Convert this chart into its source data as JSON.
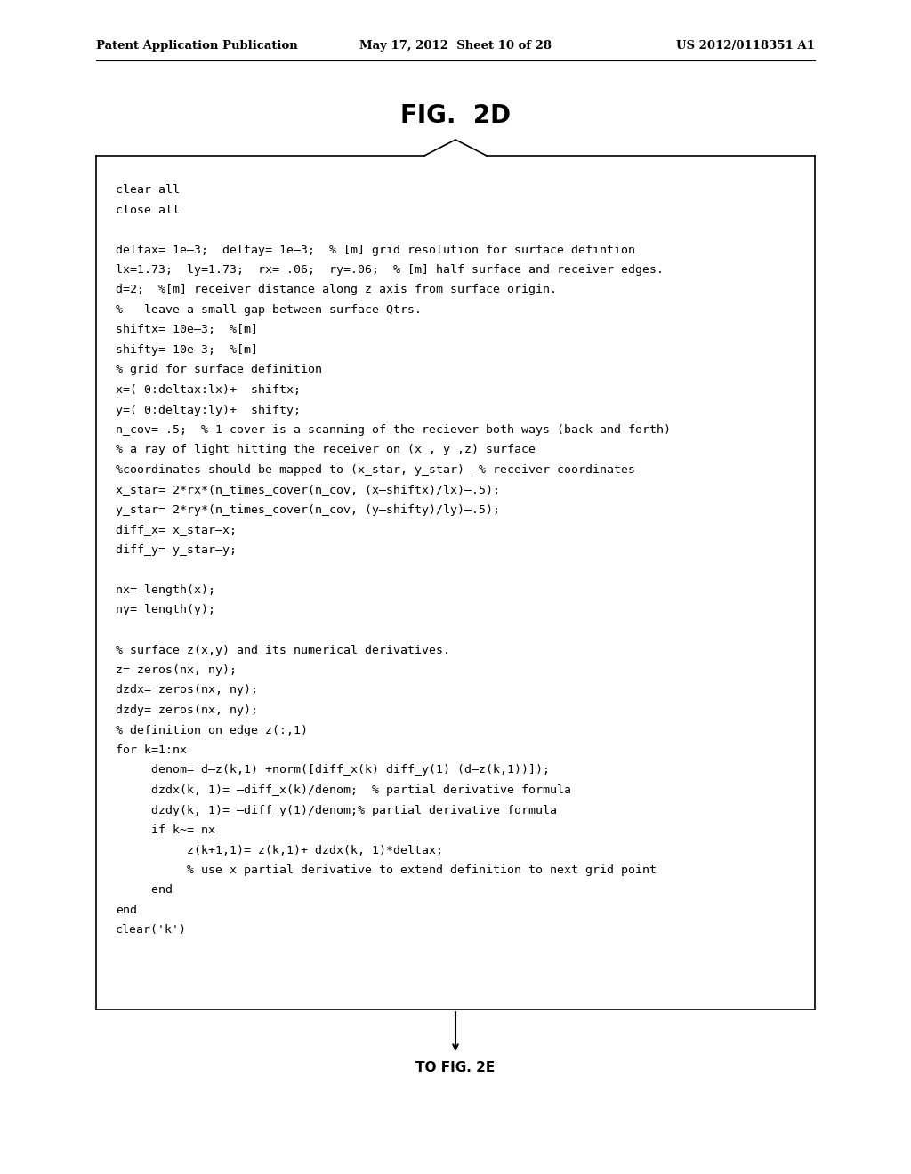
{
  "header_left": "Patent Application Publication",
  "header_mid": "May 17, 2012  Sheet 10 of 28",
  "header_right": "US 2012/0118351 A1",
  "figure_title": "FIG.  2D",
  "bg_color": "#ffffff",
  "text_color": "#000000",
  "code_lines": [
    "clear all",
    "close all",
    "",
    "deltax= 1e–3;  deltay= 1e–3;  % [m] grid resolution for surface defintion",
    "lx=1.73;  ly=1.73;  rx= .06;  ry=.06;  % [m] half surface and receiver edges.",
    "d=2;  %[m] receiver distance along z axis from surface origin.",
    "%   leave a small gap between surface Qtrs.",
    "shiftx= 10e–3;  %[m]",
    "shifty= 10e–3;  %[m]",
    "% grid for surface definition",
    "x=( 0:deltax:lx)+  shiftx;",
    "y=( 0:deltay:ly)+  shifty;",
    "n_cov= .5;  % 1 cover is a scanning of the reciever both ways (back and forth)",
    "% a ray of light hitting the receiver on (x , y ,z) surface",
    "%coordinates should be mapped to (x_star, y_star) –% receiver coordinates",
    "x_star= 2*rx*(n_times_cover(n_cov, (x–shiftx)/lx)–.5);",
    "y_star= 2*ry*(n_times_cover(n_cov, (y–shifty)/ly)–.5);",
    "diff_x= x_star–x;",
    "diff_y= y_star–y;",
    "",
    "nx= length(x);",
    "ny= length(y);",
    "",
    "% surface z(x,y) and its numerical derivatives.",
    "z= zeros(nx, ny);",
    "dzdx= zeros(nx, ny);",
    "dzdy= zeros(nx, ny);",
    "% definition on edge z(:,1)",
    "for k=1:nx",
    "     denom= d–z(k,1) +norm([diff_x(k) diff_y(1) (d–z(k,1))]);",
    "     dzdx(k, 1)= –diff_x(k)/denom;  % partial derivative formula",
    "     dzdy(k, 1)= –diff_y(1)/denom;% partial derivative formula",
    "     if k~= nx",
    "          z(k+1,1)= z(k,1)+ dzdx(k, 1)*deltax;",
    "          % use x partial derivative to extend definition to next grid point",
    "     end",
    "end",
    "clear('k')"
  ],
  "arrow_label": "TO FIG. 2E",
  "font_size_code": 9.5,
  "font_size_header": 9.5,
  "font_size_title": 20
}
